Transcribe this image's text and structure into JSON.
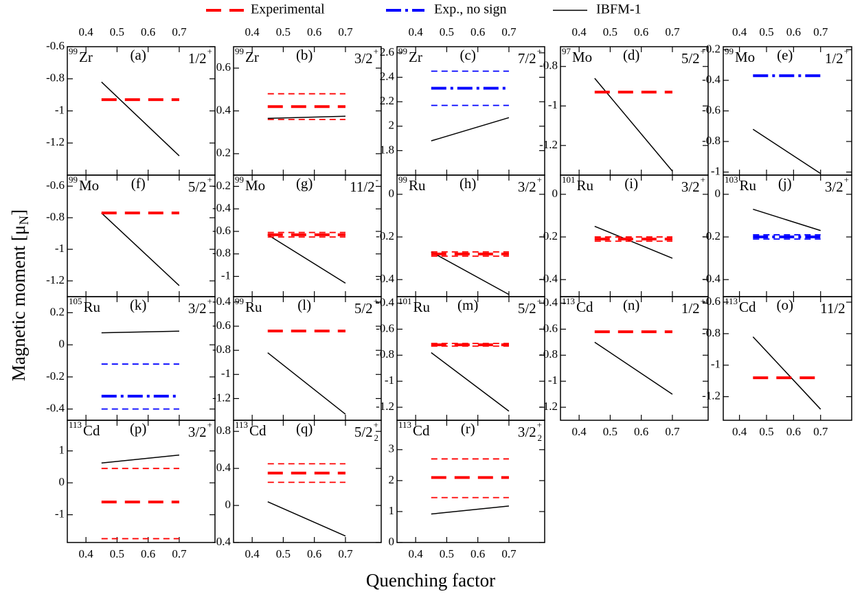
{
  "legend": [
    {
      "name": "Experimental",
      "color": "#ff0000",
      "dash": "dashed"
    },
    {
      "name": "Exp., no sign",
      "color": "#0000ff",
      "dash": "dashdot"
    },
    {
      "name": "IBFM-1",
      "color": "#000000",
      "dash": "solid"
    }
  ],
  "xlabel": "Quenching factor",
  "ylabel": [
    "Magnetic moment  [μ",
    "N",
    "]"
  ],
  "chart_data": [
    {
      "type": "line",
      "mass": "99",
      "element": "Zr",
      "label": "(a)",
      "spin": "1/2",
      "parity": "+",
      "xlim": [
        0.34,
        0.815
      ],
      "xticks": [
        0.4,
        0.5,
        0.6,
        0.7
      ],
      "xtick_labels": "top",
      "ylim": [
        -1.4,
        -0.6
      ],
      "yticks": [
        -1.2,
        -1,
        -0.8,
        -0.6
      ],
      "series": [
        {
          "name": "IBFM-1",
          "color": "#000000",
          "dash": "solid",
          "x": [
            0.45,
            0.7
          ],
          "values": [
            -0.82,
            -1.28
          ]
        },
        {
          "name": "Experimental",
          "color": "#ff0000",
          "dash": "dashed",
          "x": [
            0.45,
            0.7
          ],
          "values": [
            -0.93,
            -0.93
          ]
        }
      ]
    },
    {
      "type": "line",
      "mass": "99",
      "element": "Zr",
      "label": "(b)",
      "spin": "3/2",
      "parity": "+",
      "xlim": [
        0.34,
        0.815
      ],
      "xticks": [
        0.4,
        0.5,
        0.6,
        0.7
      ],
      "xtick_labels": "top",
      "ylim": [
        0.1,
        0.7
      ],
      "yticks": [
        0.2,
        0.4,
        0.6
      ],
      "series": [
        {
          "name": "IBFM-1",
          "color": "#000000",
          "dash": "solid",
          "x": [
            0.45,
            0.7
          ],
          "values": [
            0.365,
            0.375
          ]
        },
        {
          "name": "Experimental",
          "color": "#ff0000",
          "dash": "dashed",
          "x": [
            0.45,
            0.7
          ],
          "values": [
            0.42,
            0.42
          ],
          "error": 0.06
        }
      ]
    },
    {
      "type": "line",
      "mass": "99",
      "element": "Zr",
      "label": "(c)",
      "spin": "7/2",
      "parity": "+",
      "xlim": [
        0.34,
        0.815
      ],
      "xticks": [
        0.4,
        0.5,
        0.6,
        0.7
      ],
      "xtick_labels": "top",
      "ylim": [
        1.6,
        2.65
      ],
      "yticks": [
        1.8,
        2,
        2.2,
        2.4,
        2.6
      ],
      "series": [
        {
          "name": "IBFM-1",
          "color": "#000000",
          "dash": "solid",
          "x": [
            0.45,
            0.7
          ],
          "values": [
            1.88,
            2.07
          ]
        },
        {
          "name": "Exp., no sign",
          "color": "#0000ff",
          "dash": "dashdot",
          "x": [
            0.45,
            0.7
          ],
          "values": [
            2.31,
            2.31
          ],
          "error": 0.14
        }
      ]
    },
    {
      "type": "line",
      "mass": "97",
      "element": "Mo",
      "label": "(d)",
      "spin": "5/2",
      "parity": "+",
      "xlim": [
        0.34,
        0.815
      ],
      "xticks": [
        0.4,
        0.5,
        0.6,
        0.7
      ],
      "xtick_labels": "top",
      "ylim": [
        -1.35,
        -0.7
      ],
      "yticks": [
        -1.2,
        -1,
        -0.8
      ],
      "series": [
        {
          "name": "IBFM-1",
          "color": "#000000",
          "dash": "solid",
          "x": [
            0.45,
            0.7
          ],
          "values": [
            -0.86,
            -1.33
          ]
        },
        {
          "name": "Experimental",
          "color": "#ff0000",
          "dash": "dashed",
          "x": [
            0.45,
            0.7
          ],
          "values": [
            -0.93,
            -0.93
          ]
        }
      ]
    },
    {
      "type": "line",
      "mass": "99",
      "element": "Mo",
      "label": "(e)",
      "spin": "1/2",
      "parity": "+",
      "xlim": [
        0.34,
        0.815
      ],
      "xticks": [
        0.4,
        0.5,
        0.6,
        0.7
      ],
      "xtick_labels": "top",
      "ylim": [
        -1.02,
        -0.18
      ],
      "yticks": [
        -1,
        -0.8,
        -0.6,
        -0.4,
        -0.2
      ],
      "series": [
        {
          "name": "IBFM-1",
          "color": "#000000",
          "dash": "solid",
          "x": [
            0.45,
            0.7
          ],
          "values": [
            -0.72,
            -1.01
          ]
        },
        {
          "name": "Exp., no sign",
          "color": "#0000ff",
          "dash": "dashdot",
          "x": [
            0.45,
            0.7
          ],
          "values": [
            -0.37,
            -0.37
          ]
        }
      ]
    },
    {
      "type": "line",
      "mass": "99",
      "element": "Mo",
      "label": "(f)",
      "spin": "5/2",
      "parity": "+",
      "xlim": [
        0.34,
        0.815
      ],
      "xticks": [
        0.4,
        0.5,
        0.6,
        0.7
      ],
      "xtick_labels": "none",
      "ylim": [
        -1.3,
        -0.53
      ],
      "yticks": [
        -1.2,
        -1,
        -0.8,
        -0.6
      ],
      "series": [
        {
          "name": "IBFM-1",
          "color": "#000000",
          "dash": "solid",
          "x": [
            0.45,
            0.7
          ],
          "values": [
            -0.77,
            -1.23
          ]
        },
        {
          "name": "Experimental",
          "color": "#ff0000",
          "dash": "dashed",
          "x": [
            0.45,
            0.7
          ],
          "values": [
            -0.77,
            -0.77
          ]
        }
      ]
    },
    {
      "type": "line",
      "mass": "99",
      "element": "Mo",
      "label": "(g)",
      "spin": "11/2",
      "parity": "-",
      "xlim": [
        0.34,
        0.815
      ],
      "xticks": [
        0.4,
        0.5,
        0.6,
        0.7
      ],
      "xtick_labels": "none",
      "ylim": [
        -1.18,
        -0.1
      ],
      "yticks": [
        -1,
        -0.8,
        -0.6,
        -0.4,
        -0.2
      ],
      "series": [
        {
          "name": "IBFM-1",
          "color": "#000000",
          "dash": "solid",
          "x": [
            0.45,
            0.7
          ],
          "values": [
            -0.63,
            -1.06
          ]
        },
        {
          "name": "Experimental",
          "color": "#ff0000",
          "dash": "dashed",
          "x": [
            0.45,
            0.7
          ],
          "values": [
            -0.63,
            -0.63
          ],
          "error": 0.02
        }
      ]
    },
    {
      "type": "line",
      "mass": "99",
      "element": "Ru",
      "label": "(h)",
      "spin": "3/2",
      "parity": "+",
      "xlim": [
        0.34,
        0.815
      ],
      "xticks": [
        0.4,
        0.5,
        0.6,
        0.7
      ],
      "xtick_labels": "none",
      "ylim": [
        -0.48,
        0.09
      ],
      "yticks": [
        -0.4,
        -0.2,
        0
      ],
      "series": [
        {
          "name": "IBFM-1",
          "color": "#000000",
          "dash": "solid",
          "x": [
            0.45,
            0.7
          ],
          "values": [
            -0.27,
            -0.47
          ]
        },
        {
          "name": "Experimental",
          "color": "#ff0000",
          "dash": "dashed",
          "x": [
            0.45,
            0.7
          ],
          "values": [
            -0.28,
            -0.28
          ],
          "error": 0.01
        }
      ]
    },
    {
      "type": "line",
      "mass": "101",
      "element": "Ru",
      "label": "(i)",
      "spin": "3/2",
      "parity": "+",
      "xlim": [
        0.34,
        0.815
      ],
      "xticks": [
        0.4,
        0.5,
        0.6,
        0.7
      ],
      "xtick_labels": "none",
      "ylim": [
        -0.48,
        0.09
      ],
      "yticks": [
        -0.4,
        -0.2,
        0
      ],
      "series": [
        {
          "name": "IBFM-1",
          "color": "#000000",
          "dash": "solid",
          "x": [
            0.45,
            0.7
          ],
          "values": [
            -0.15,
            -0.3
          ]
        },
        {
          "name": "Experimental",
          "color": "#ff0000",
          "dash": "dashed",
          "x": [
            0.45,
            0.7
          ],
          "values": [
            -0.21,
            -0.21
          ],
          "error": 0.01
        }
      ]
    },
    {
      "type": "line",
      "mass": "103",
      "element": "Ru",
      "label": "(j)",
      "spin": "3/2",
      "parity": "+",
      "xlim": [
        0.34,
        0.815
      ],
      "xticks": [
        0.4,
        0.5,
        0.6,
        0.7
      ],
      "xtick_labels": "none",
      "ylim": [
        -0.48,
        0.09
      ],
      "yticks": [
        -0.4,
        -0.2,
        0
      ],
      "series": [
        {
          "name": "IBFM-1",
          "color": "#000000",
          "dash": "solid",
          "x": [
            0.45,
            0.7
          ],
          "values": [
            -0.07,
            -0.17
          ]
        },
        {
          "name": "Exp., no sign",
          "color": "#0000ff",
          "dash": "dashdot",
          "x": [
            0.45,
            0.7
          ],
          "values": [
            -0.2,
            -0.2
          ],
          "error": 0.01
        }
      ]
    },
    {
      "type": "line",
      "mass": "105",
      "element": "Ru",
      "label": "(k)",
      "spin": "3/2",
      "parity": "+",
      "xlim": [
        0.34,
        0.815
      ],
      "xticks": [
        0.4,
        0.5,
        0.6,
        0.7
      ],
      "xtick_labels": "none",
      "ylim": [
        -0.47,
        0.3
      ],
      "yticks": [
        -0.4,
        -0.2,
        0,
        0.2
      ],
      "series": [
        {
          "name": "IBFM-1",
          "color": "#000000",
          "dash": "solid",
          "x": [
            0.45,
            0.7
          ],
          "values": [
            0.075,
            0.085
          ]
        },
        {
          "name": "Exp., no sign",
          "color": "#0000ff",
          "dash": "dashdot",
          "x": [
            0.45,
            0.7
          ],
          "values": [
            -0.32,
            -0.32
          ],
          "error": [
            0.08,
            0.2
          ]
        }
      ]
    },
    {
      "type": "line",
      "mass": "99",
      "element": "Ru",
      "label": "(l)",
      "spin": "5/2",
      "parity": "+",
      "xlim": [
        0.34,
        0.815
      ],
      "xticks": [
        0.4,
        0.5,
        0.6,
        0.7
      ],
      "xtick_labels": "none",
      "ylim": [
        -1.38,
        -0.355
      ],
      "yticks": [
        -1.2,
        -1,
        -0.8,
        -0.6,
        -0.4
      ],
      "series": [
        {
          "name": "IBFM-1",
          "color": "#000000",
          "dash": "solid",
          "x": [
            0.45,
            0.7
          ],
          "values": [
            -0.82,
            -1.33
          ]
        },
        {
          "name": "Experimental",
          "color": "#ff0000",
          "dash": "dashed",
          "x": [
            0.45,
            0.7
          ],
          "values": [
            -0.64,
            -0.64
          ]
        }
      ]
    },
    {
      "type": "line",
      "mass": "101",
      "element": "Ru",
      "label": "(m)",
      "spin": "5/2",
      "parity": "+",
      "xlim": [
        0.34,
        0.815
      ],
      "xticks": [
        0.4,
        0.5,
        0.6,
        0.7
      ],
      "xtick_labels": "none",
      "ylim": [
        -1.3,
        -0.35
      ],
      "yticks": [
        -1.2,
        -1,
        -0.8,
        -0.6,
        -0.4
      ],
      "series": [
        {
          "name": "IBFM-1",
          "color": "#000000",
          "dash": "solid",
          "x": [
            0.45,
            0.7
          ],
          "values": [
            -0.78,
            -1.23
          ]
        },
        {
          "name": "Experimental",
          "color": "#ff0000",
          "dash": "dashed",
          "x": [
            0.45,
            0.7
          ],
          "values": [
            -0.72,
            -0.72
          ],
          "error": 0.01
        }
      ]
    },
    {
      "type": "line",
      "mass": "113",
      "element": "Cd",
      "label": "(n)",
      "spin": "1/2",
      "parity": "+",
      "xlim": [
        0.34,
        0.815
      ],
      "xticks": [
        0.4,
        0.5,
        0.6,
        0.7
      ],
      "xtick_labels": "bottom",
      "ylim": [
        -1.3,
        -0.35
      ],
      "yticks": [
        -1.2,
        -1,
        -0.8,
        -0.6,
        -0.4
      ],
      "series": [
        {
          "name": "IBFM-1",
          "color": "#000000",
          "dash": "solid",
          "x": [
            0.45,
            0.7
          ],
          "values": [
            -0.7,
            -1.1
          ]
        },
        {
          "name": "Experimental",
          "color": "#ff0000",
          "dash": "dashed",
          "x": [
            0.45,
            0.7
          ],
          "values": [
            -0.62,
            -0.62
          ]
        }
      ]
    },
    {
      "type": "line",
      "mass": "113",
      "element": "Cd",
      "label": "(o)",
      "spin": "11/2",
      "parity": "-",
      "xlim": [
        0.34,
        0.815
      ],
      "xticks": [
        0.4,
        0.5,
        0.6,
        0.7
      ],
      "xtick_labels": "bottom",
      "ylim": [
        -1.35,
        -0.565
      ],
      "yticks": [
        -1.2,
        -1,
        -0.8,
        -0.6
      ],
      "series": [
        {
          "name": "IBFM-1",
          "color": "#000000",
          "dash": "solid",
          "x": [
            0.45,
            0.7
          ],
          "values": [
            -0.82,
            -1.28
          ]
        },
        {
          "name": "Experimental",
          "color": "#ff0000",
          "dash": "dashed",
          "x": [
            0.45,
            0.7
          ],
          "values": [
            -1.08,
            -1.08
          ]
        }
      ]
    },
    {
      "type": "line",
      "mass": "113",
      "element": "Cd",
      "label": "(p)",
      "spin": "3/2",
      "parity": "+",
      "xlim": [
        0.34,
        0.815
      ],
      "xticks": [
        0.4,
        0.5,
        0.6,
        0.7
      ],
      "xtick_labels": "bottom",
      "ylim": [
        -1.87,
        1.96
      ],
      "yticks": [
        -1,
        0,
        1
      ],
      "series": [
        {
          "name": "IBFM-1",
          "color": "#000000",
          "dash": "solid",
          "x": [
            0.45,
            0.7
          ],
          "values": [
            0.62,
            0.87
          ]
        },
        {
          "name": "Experimental",
          "color": "#ff0000",
          "dash": "dashed",
          "x": [
            0.45,
            0.7
          ],
          "values": [
            -0.6,
            -0.6
          ],
          "error": [
            1.15,
            1.05
          ]
        }
      ]
    },
    {
      "type": "line",
      "mass": "113",
      "element": "Cd",
      "label": "(q)",
      "spin": "5/2",
      "spin_index": "2",
      "parity": "+",
      "xlim": [
        0.34,
        0.815
      ],
      "xticks": [
        0.4,
        0.5,
        0.6,
        0.7
      ],
      "xtick_labels": "bottom",
      "ylim": [
        -0.4,
        0.92
      ],
      "yticks": [
        -0.4,
        0,
        0.4,
        0.8
      ],
      "series": [
        {
          "name": "IBFM-1",
          "color": "#000000",
          "dash": "solid",
          "x": [
            0.45,
            0.7
          ],
          "values": [
            0.04,
            -0.33
          ]
        },
        {
          "name": "Experimental",
          "color": "#ff0000",
          "dash": "dashed",
          "x": [
            0.45,
            0.7
          ],
          "values": [
            0.35,
            0.35
          ],
          "error": 0.1
        }
      ]
    },
    {
      "type": "line",
      "mass": "113",
      "element": "Cd",
      "label": "(r)",
      "spin": "3/2",
      "spin_index": "2",
      "parity": "+",
      "xlim": [
        0.34,
        0.815
      ],
      "xticks": [
        0.4,
        0.5,
        0.6,
        0.7
      ],
      "xtick_labels": "bottom",
      "ylim": [
        0,
        3.95
      ],
      "yticks": [
        0,
        1,
        2,
        3
      ],
      "series": [
        {
          "name": "IBFM-1",
          "color": "#000000",
          "dash": "solid",
          "x": [
            0.45,
            0.7
          ],
          "values": [
            0.92,
            1.18
          ]
        },
        {
          "name": "Experimental",
          "color": "#ff0000",
          "dash": "dashed",
          "x": [
            0.45,
            0.7
          ],
          "values": [
            2.1,
            2.1
          ],
          "error": [
            0.65,
            0.6
          ]
        }
      ]
    }
  ]
}
